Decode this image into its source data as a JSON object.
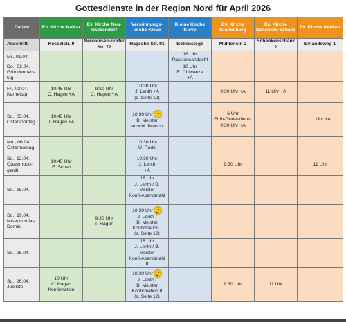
{
  "title": "Gottesdienste in der Region Nord für April 2026",
  "headers": [
    "Datum",
    "Ev. Kirche Kalkar",
    "Ev. Kirche Neu-louisendorf",
    "Versöhnungs-kirche Kleve",
    "Kleine Kirche Kleve",
    "Ev. Kirche Kranenburg",
    "Ev. Kirche Schenken-schanz",
    "Ev. Kirche Keeken"
  ],
  "address": [
    "Anschrift",
    "Kesselstr. 9",
    "Neulouisen-dorfer Str. 72",
    "Hagsche Str. 91",
    "Böllenstege",
    "Mühlenstr. 2",
    "Schenkenschanz 2",
    "Bylandsweg 1"
  ],
  "rows": [
    {
      "date": "Mi., 01.04.",
      "cells": [
        "",
        "",
        "",
        "18 Uhr\nPassionsandacht",
        "",
        "",
        ""
      ]
    },
    {
      "date": "Do., 02.04.\nGründonners-tag",
      "cells": [
        "",
        "",
        "",
        "18 Uhr\nE. Chiwaeze\n+A",
        "",
        "",
        ""
      ]
    },
    {
      "date": "Fr., 03.04.\nKarfreitag",
      "cells": [
        "10:45 Uhr\nC. Hagen +A",
        "9:30 Uhr\nC. Hagen +A",
        "10:30 Uhr\nJ. Lenth +A\n(s. Seite 12)",
        "",
        "9:30 Uhr +A",
        "11 Uhr +A",
        ""
      ]
    },
    {
      "date": "So., 05.04.\nOstersonntag",
      "cells": [
        "10:45 Uhr\nT. Hagen +A",
        "",
        "10:30 Uhr\nB. Meister\nanschl. Brunch",
        "",
        "6 Uhr\nFrüh-Gottesdienst\n9:30 Uhr +A",
        "",
        "11 Uhr +A"
      ]
    },
    {
      "date": "Mo., 06.04.\nOstermontag",
      "cells": [
        "",
        "",
        "10:30 Uhr\nU. Rode",
        "",
        "",
        "",
        ""
      ]
    },
    {
      "date": "So., 12.04.\nQuasimodo-geniti",
      "cells": [
        "10:45 Uhr\nE. Schell",
        "",
        "10:30 Uhr\nJ. Lenth\n+A",
        "",
        "9:30 Uhr",
        "",
        "11 Uhr"
      ]
    },
    {
      "date": "Sa., 18.04.",
      "cells": [
        "",
        "",
        "18 Uhr\nJ. Lenth / B. Meister\nKonfi-Abendmahl\nI",
        "",
        "",
        "",
        ""
      ]
    },
    {
      "date": "So., 19.04.\nMisericordias\nDomini",
      "cells": [
        "",
        "9:30 Uhr\nT. Hagen",
        "10:30 Uhr\nJ. Lenth /\nB. Meister\nKonfirmation I\n(s. Seite 12)",
        "",
        "",
        "",
        ""
      ]
    },
    {
      "date": "Sa., 25.04.",
      "cells": [
        "",
        "",
        "18 Uhr\nJ. Lenth / B. Meister\nKonfi-Abendmahl\nII",
        "",
        "",
        "",
        ""
      ]
    },
    {
      "date": "So., 26.04.\nJubilate",
      "cells": [
        "10 Uhr\nC. Hagen\nKonfirmation",
        "",
        "10:30 Uhr\nJ. Lenth /\nB. Meister\nKonfirmation II\n(s. Seite 12)",
        "",
        "9:30 Uhr",
        "11 Uhr",
        ""
      ]
    }
  ],
  "smiley_rows": [
    3,
    7,
    9
  ],
  "colors": {
    "datum": "#6b6b6b",
    "green": "#2e9a45",
    "blue": "#2a7fc9",
    "orange": "#ef9320"
  }
}
